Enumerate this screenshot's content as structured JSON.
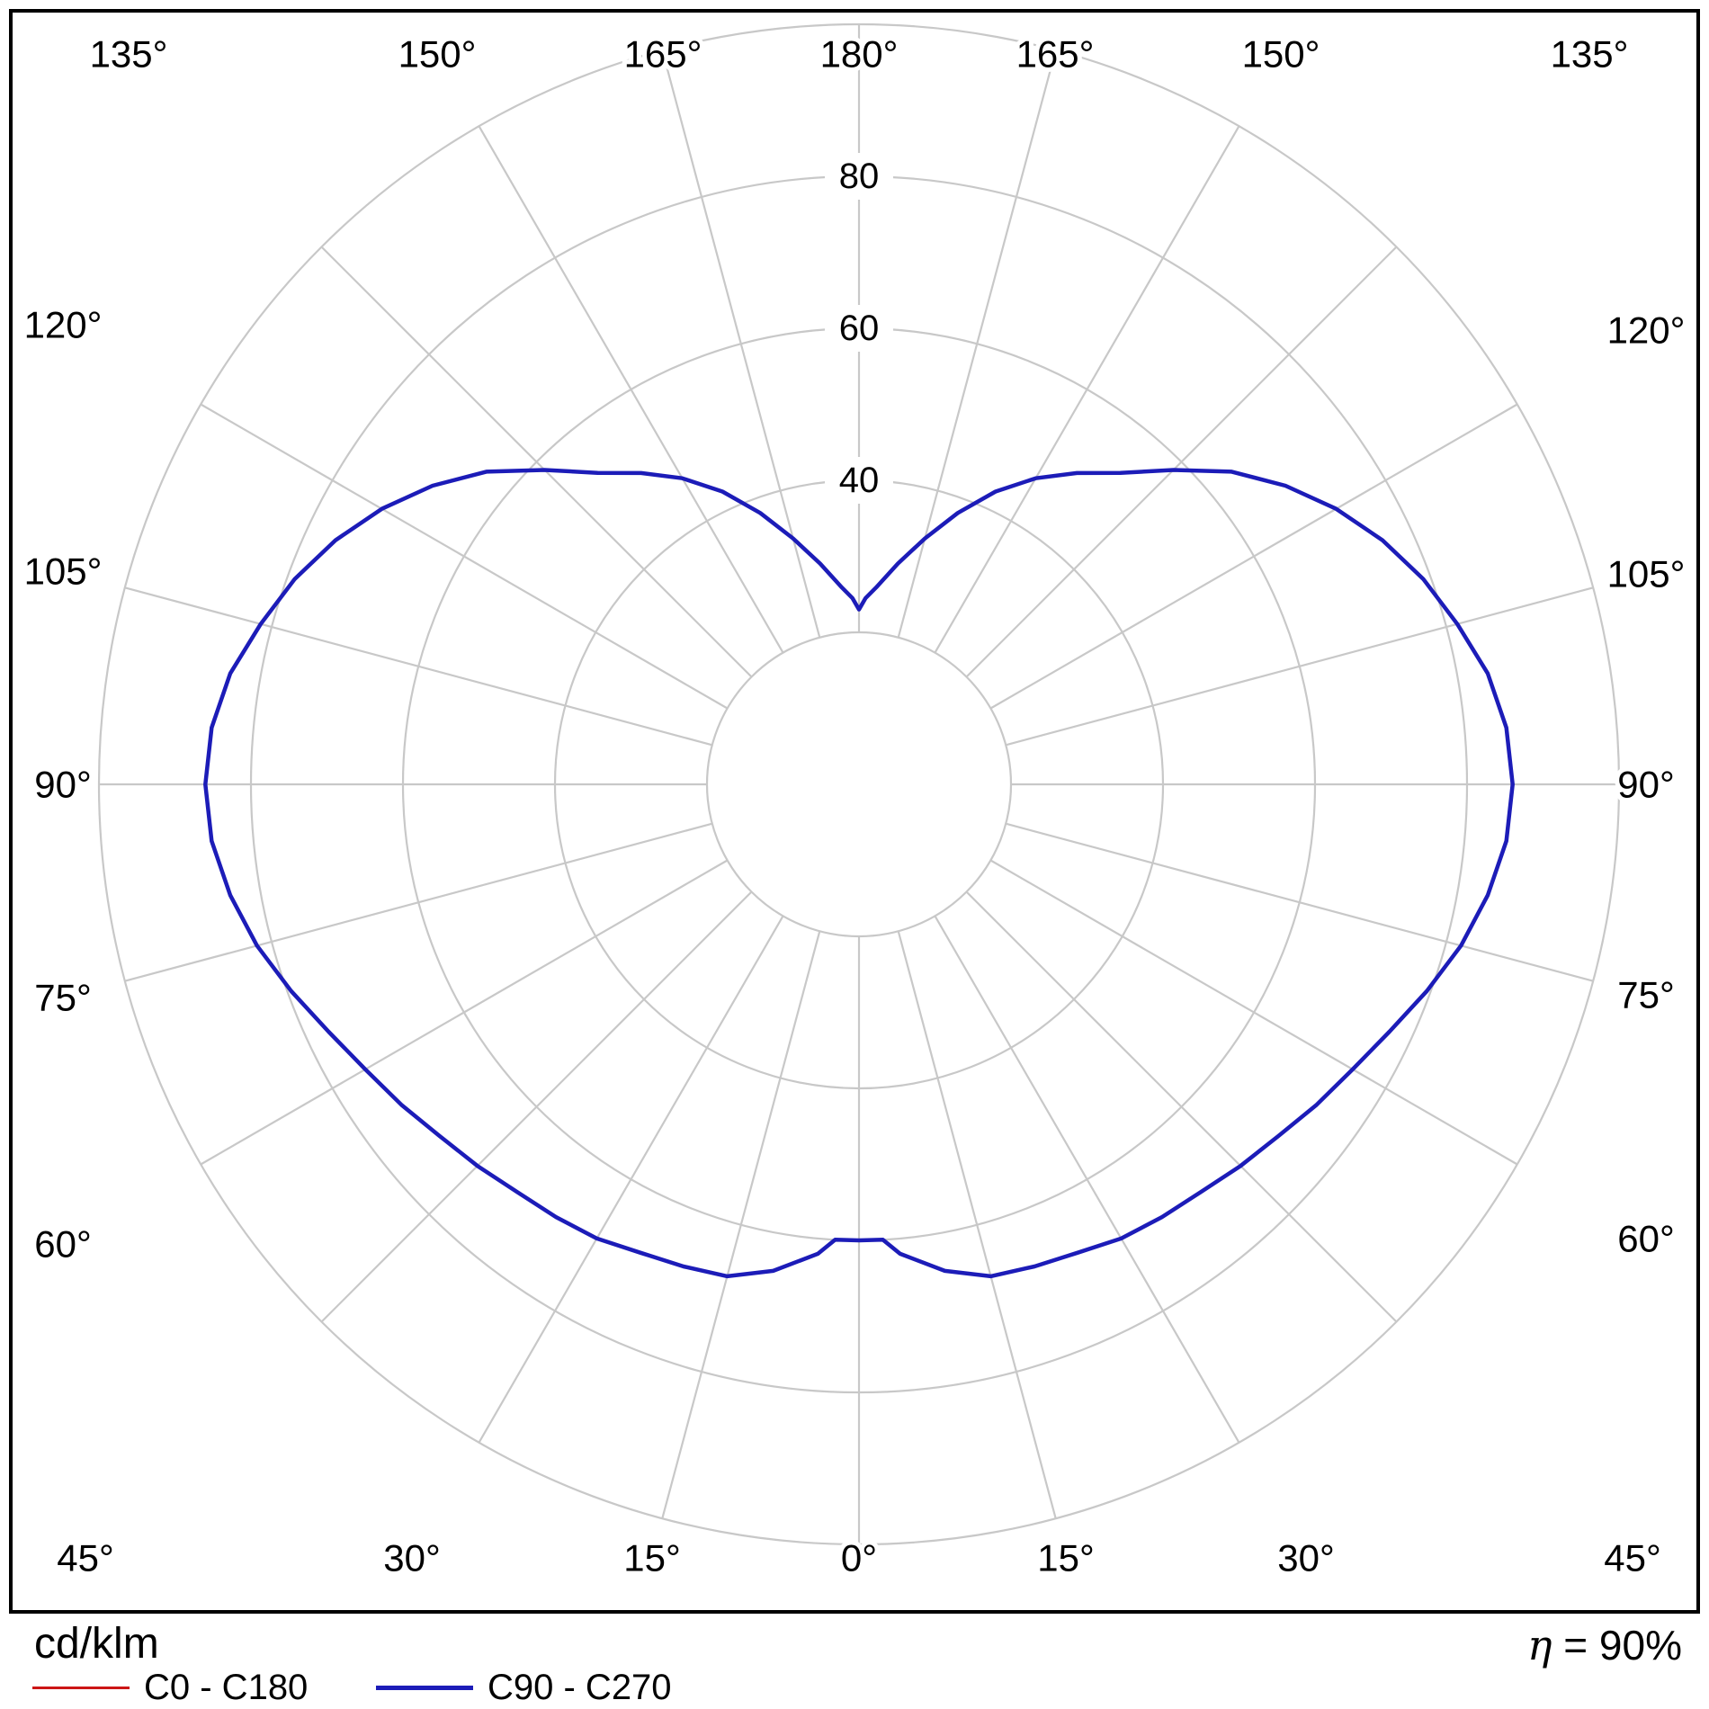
{
  "footer": {
    "unit_label": "cd/klm",
    "efficiency": {
      "symbol": "η",
      "rest": " = 90%"
    }
  },
  "legend": [
    {
      "label": "C0 - C180",
      "color": "#cc1616"
    },
    {
      "label": "C90 - C270",
      "color": "#1c1cb8"
    }
  ],
  "chart_data": {
    "type": "polar_photometric_curve",
    "title": "",
    "unit": "cd/klm",
    "efficiency_percent": 90,
    "efficiency_text": "η = 90%",
    "grid_color": "#c8c8c8",
    "angle_step_deg": 15,
    "r_max": 100,
    "ring_values": [
      20,
      40,
      60,
      80,
      100
    ],
    "ring_labels": [
      {
        "value": 40,
        "text": "40"
      },
      {
        "value": 60,
        "text": "60"
      },
      {
        "value": 80,
        "text": "80"
      }
    ],
    "angle_labels": [
      "0°",
      "15°",
      "30°",
      "45°",
      "60°",
      "75°",
      "90°",
      "105°",
      "120°",
      "135°",
      "150°",
      "165°",
      "180°"
    ],
    "series": [
      {
        "name": "C0 - C180",
        "color": "#cc1616",
        "symmetric": true,
        "gamma_deg": [
          0,
          3,
          5,
          10,
          15,
          20,
          25,
          30,
          35,
          40,
          45,
          50,
          55,
          60,
          65,
          70,
          75,
          80,
          85,
          90,
          95,
          100,
          105,
          110,
          115,
          120,
          125,
          130,
          135,
          140,
          145,
          150,
          155,
          160,
          165,
          170,
          175,
          178,
          180
        ],
        "values": [
          60,
          60,
          62,
          65,
          67,
          67.5,
          68,
          69,
          69.5,
          70,
          71,
          72,
          73.5,
          75,
          77,
          79.5,
          82,
          84,
          85.5,
          86,
          85.5,
          84,
          81.5,
          79,
          76,
          72.5,
          68.5,
          64,
          58.5,
          53.5,
          50,
          46.5,
          42.5,
          38,
          33.5,
          29.5,
          26,
          24.5,
          23
        ]
      },
      {
        "name": "C90 - C270",
        "color": "#1c1cb8",
        "symmetric": true,
        "gamma_deg": [
          0,
          3,
          5,
          10,
          15,
          20,
          25,
          30,
          35,
          40,
          45,
          50,
          55,
          60,
          65,
          70,
          75,
          80,
          85,
          90,
          95,
          100,
          105,
          110,
          115,
          120,
          125,
          130,
          135,
          140,
          145,
          150,
          155,
          160,
          165,
          170,
          175,
          178,
          180
        ],
        "values": [
          60,
          60,
          62,
          65,
          67,
          67.5,
          68,
          69,
          69.5,
          70,
          71,
          72,
          73.5,
          75,
          77,
          79.5,
          82,
          84,
          85.5,
          86,
          85.5,
          84,
          81.5,
          79,
          76,
          72.5,
          68.5,
          64,
          58.5,
          53.5,
          50,
          46.5,
          42.5,
          38,
          33.5,
          29.5,
          26,
          24.5,
          23
        ]
      }
    ],
    "note": "Red C0 - C180 curve coincides with blue C90 - C270 curve and is hidden beneath it. Gamma 0° is at bottom (nadir), 180° at top. Values in cd/klm, rings every 20."
  }
}
